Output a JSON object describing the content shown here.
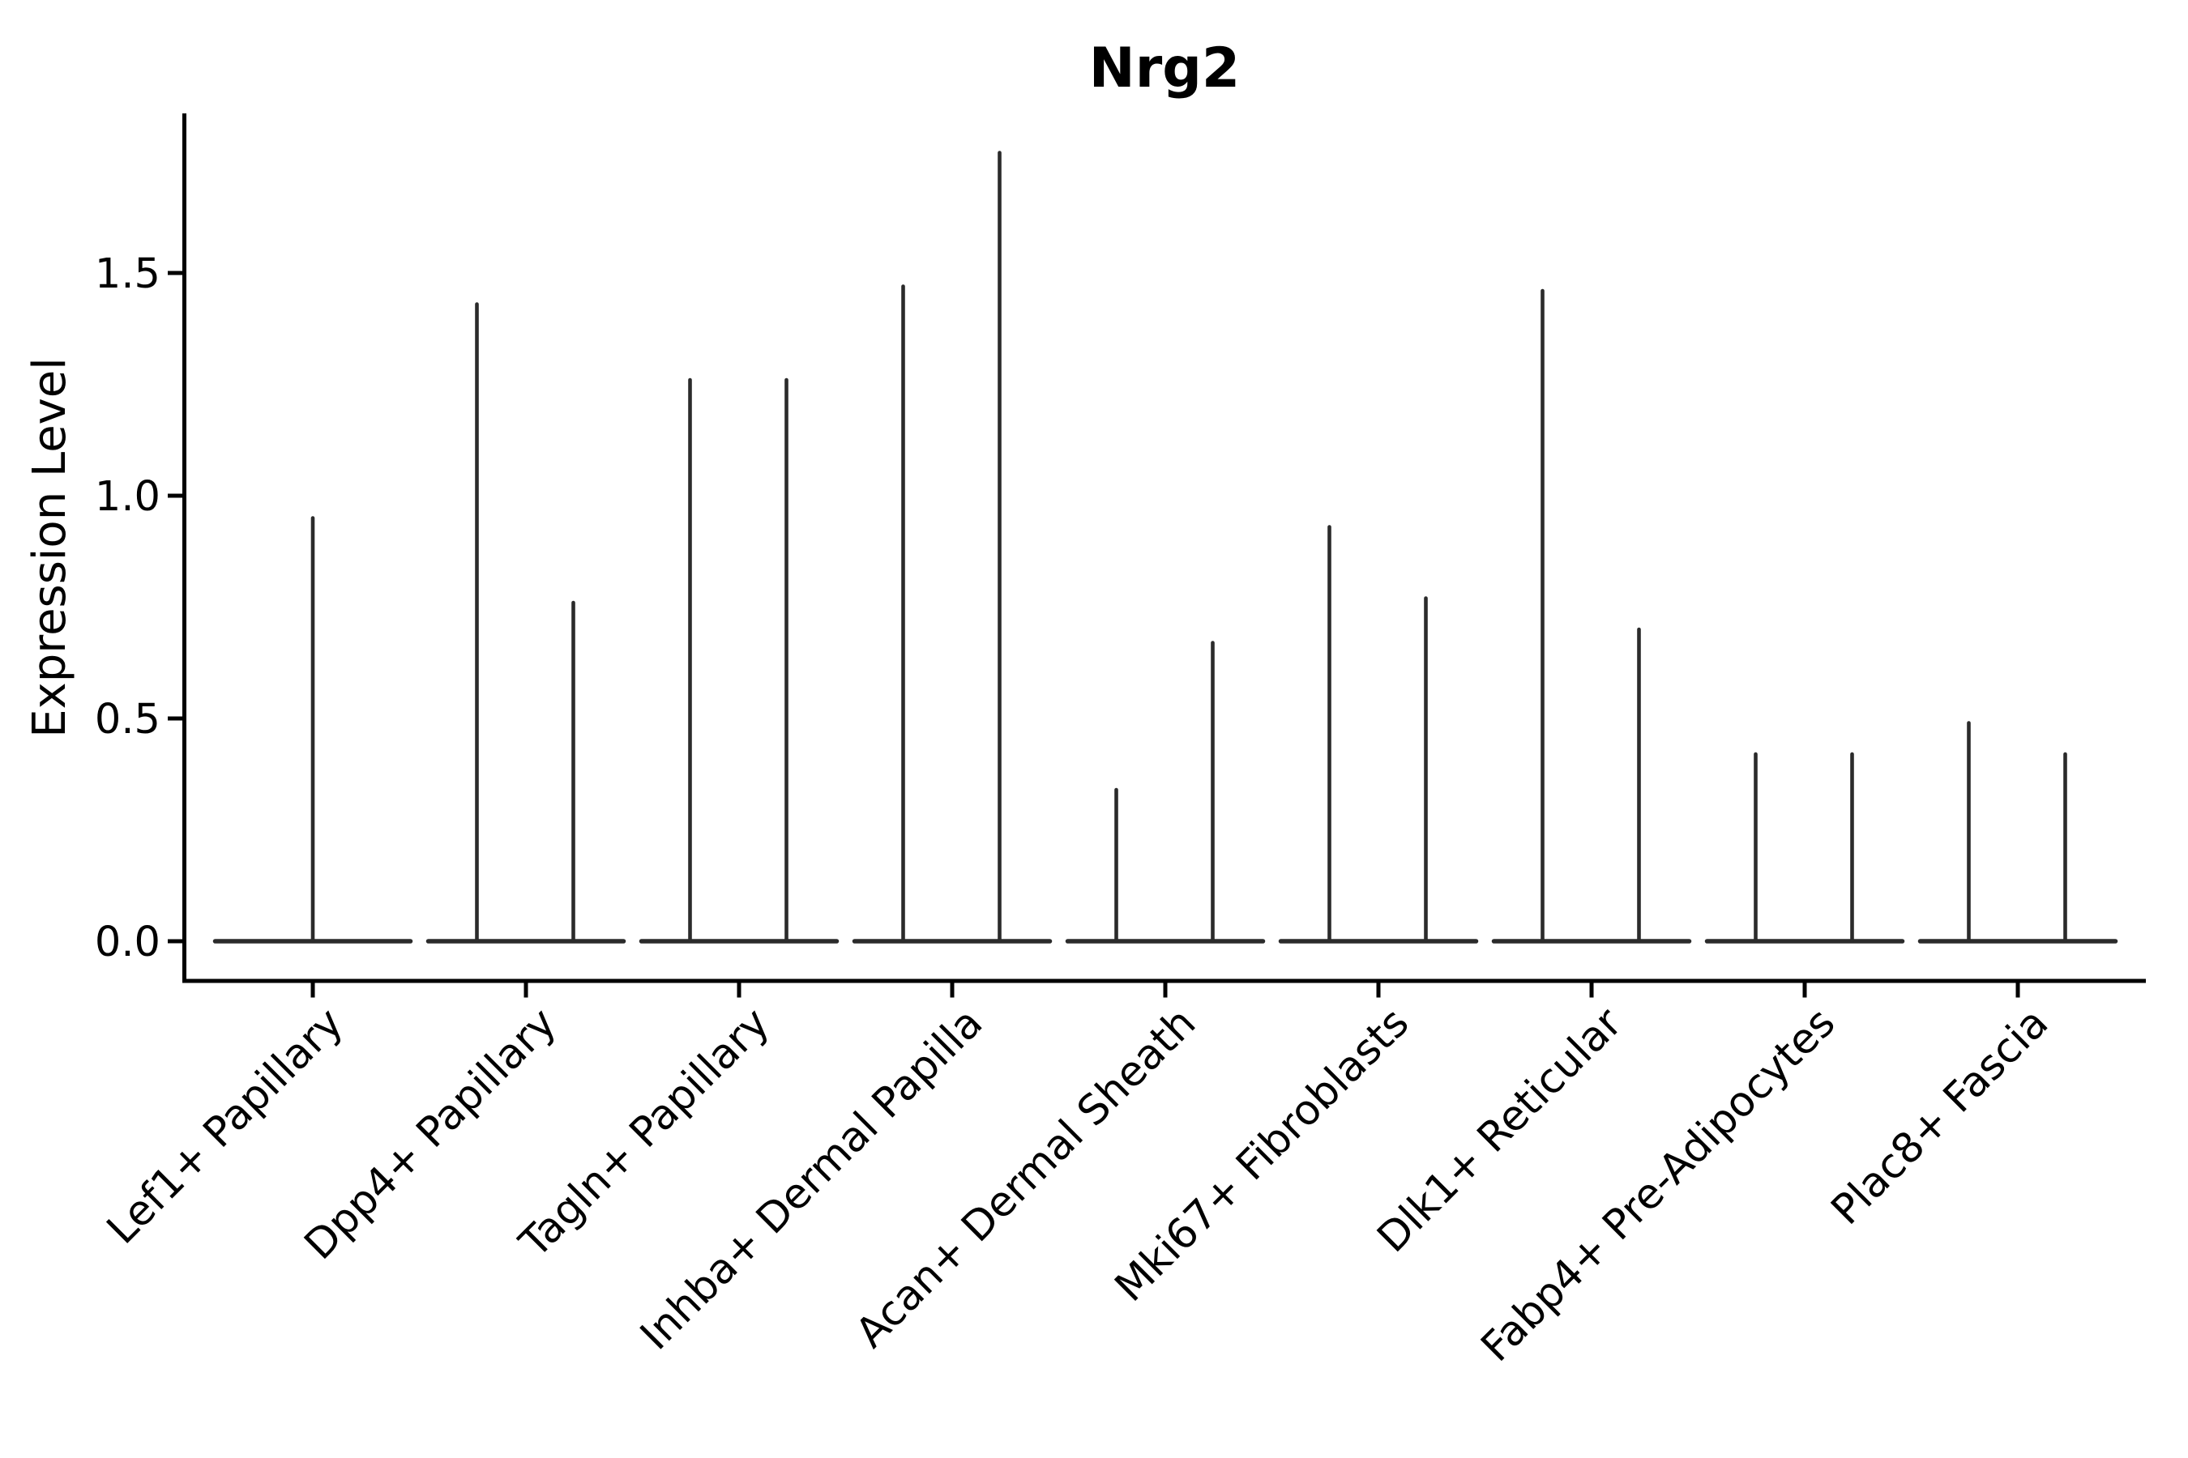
{
  "chart_data": {
    "type": "violin",
    "title": "Nrg2",
    "ylabel": "Expression Level",
    "xlabel": "",
    "categories": [
      "Lef1+ Papillary",
      "Dpp4+ Papillary",
      "Tagln+ Papillary",
      "Inhba+ Dermal Papilla",
      "Acan+ Dermal Sheath",
      "Mki67+ Fibroblasts",
      "Dlk1+ Reticular",
      "Fabp4+ Pre-Adipocytes",
      "Plac8+ Fascia"
    ],
    "series": [
      {
        "category": "Lef1+ Papillary",
        "violin_maxima": [
          0.95
        ]
      },
      {
        "category": "Dpp4+ Papillary",
        "violin_maxima": [
          1.43,
          0.76
        ]
      },
      {
        "category": "Tagln+ Papillary",
        "violin_maxima": [
          1.26,
          1.26
        ]
      },
      {
        "category": "Inhba+ Dermal Papilla",
        "violin_maxima": [
          1.47,
          1.77
        ]
      },
      {
        "category": "Acan+ Dermal Sheath",
        "violin_maxima": [
          0.34,
          0.67
        ]
      },
      {
        "category": "Mki67+ Fibroblasts",
        "violin_maxima": [
          0.93,
          0.77
        ]
      },
      {
        "category": "Dlk1+ Reticular",
        "violin_maxima": [
          1.46,
          0.7
        ]
      },
      {
        "category": "Fabp4+ Pre-Adipocytes",
        "violin_maxima": [
          0.42,
          0.42
        ]
      },
      {
        "category": "Plac8+ Fascia",
        "violin_maxima": [
          0.49,
          0.42
        ]
      }
    ],
    "baseline_value": 0.0,
    "yticks": [
      0.0,
      0.5,
      1.0,
      1.5
    ],
    "ytick_labels": [
      "0.0",
      "0.5",
      "1.0",
      "1.5"
    ],
    "ylim": [
      -0.089,
      1.858
    ],
    "grid": false,
    "legend": "none",
    "x_tick_rotation_deg": 45,
    "colors": {
      "violin_line": "#2b2b2b",
      "axis": "#000000",
      "text": "#000000",
      "background": "#ffffff"
    }
  }
}
